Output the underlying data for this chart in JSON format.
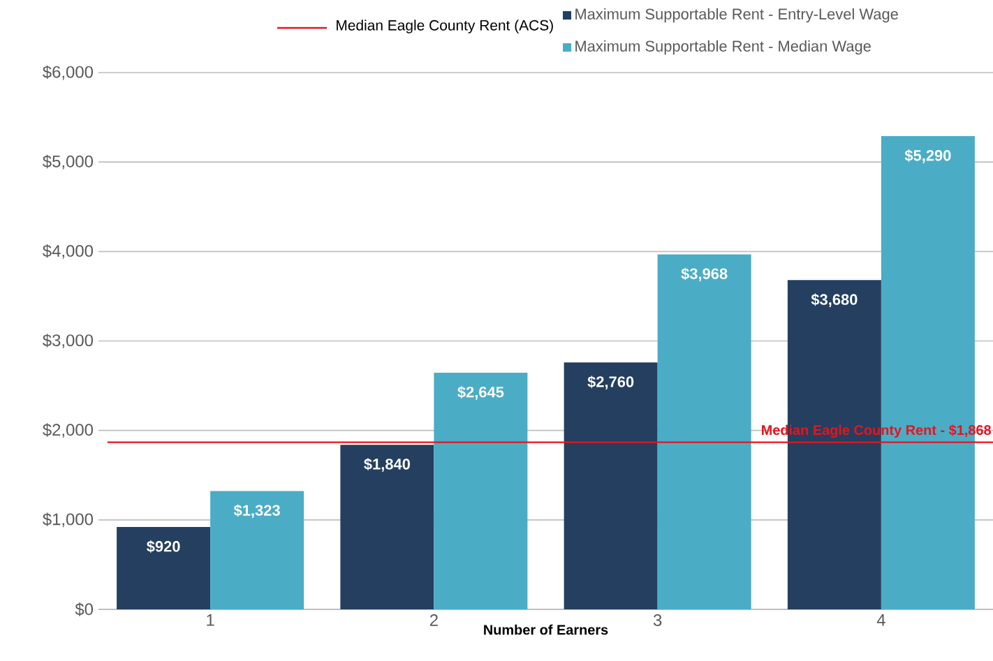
{
  "chart_data": {
    "type": "bar",
    "xlabel": "Number of Earners",
    "categories": [
      "1",
      "2",
      "3",
      "4"
    ],
    "series": [
      {
        "name": "Maximum Supportable Rent - Entry-Level Wage",
        "color": "#243f60",
        "values": [
          920,
          1840,
          2760,
          3680
        ],
        "value_labels": [
          "$920",
          "$1,840",
          "$2,760",
          "$3,680"
        ]
      },
      {
        "name": "Maximum Supportable Rent - Median Wage",
        "color": "#4bacc6",
        "values": [
          1323,
          2645,
          3968,
          5290
        ],
        "value_labels": [
          "$1,323",
          "$2,645",
          "$3,968",
          "$5,290"
        ]
      }
    ],
    "ylim": [
      0,
      6000
    ],
    "yticks": [
      {
        "value": 0,
        "label": "$0"
      },
      {
        "value": 1000,
        "label": "$1,000"
      },
      {
        "value": 2000,
        "label": "$2,000"
      },
      {
        "value": 3000,
        "label": "$3,000"
      },
      {
        "value": 4000,
        "label": "$4,000"
      },
      {
        "value": 5000,
        "label": "$5,000"
      },
      {
        "value": 6000,
        "label": "$6,000"
      }
    ],
    "ref_lines": [
      {
        "axis": "y",
        "value": 1868,
        "label": "Median Eagle County Rent - $1,868",
        "color": "#e8141b"
      }
    ],
    "annotations": [
      "Median Eagle County Rent (ACS)"
    ],
    "grid": "y",
    "legend": "top"
  }
}
